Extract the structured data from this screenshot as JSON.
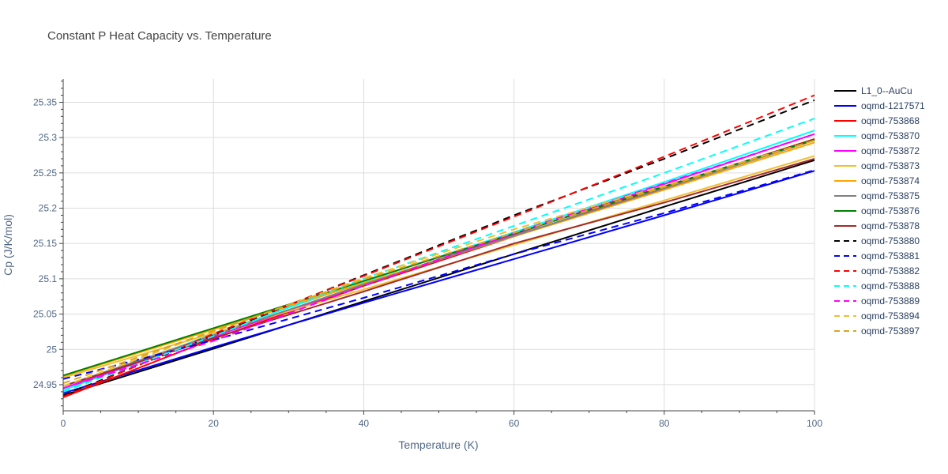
{
  "chart_data": {
    "type": "line",
    "title": "Constant P Heat Capacity vs. Temperature",
    "xlabel": "Temperature (K)",
    "ylabel": "Cp (J/K/mol)",
    "xlim": [
      0,
      100
    ],
    "ylim": [
      24.913,
      25.383
    ],
    "x_ticks": [
      0,
      20,
      40,
      60,
      80,
      100
    ],
    "y_ticks": [
      24.95,
      25,
      25.05,
      25.1,
      25.15,
      25.2,
      25.25,
      25.3,
      25.35
    ],
    "x_tick_labels": [
      "0",
      "20",
      "40",
      "60",
      "80",
      "100"
    ],
    "y_tick_labels": [
      "24.95",
      "25",
      "25.05",
      "25.1",
      "25.15",
      "25.2",
      "25.25",
      "25.3",
      "25.35"
    ],
    "grid": true,
    "legend_position": "right",
    "series": [
      {
        "name": "L1_0--AuCu",
        "color": "#000000",
        "dash": "solid",
        "x": [
          0,
          20,
          40,
          60,
          80,
          100
        ],
        "y": [
          24.935,
          25.001,
          25.068,
          25.135,
          25.202,
          25.268
        ]
      },
      {
        "name": "oqmd-1217571",
        "color": "#0000ff",
        "dash": "solid",
        "x": [
          0,
          20,
          40,
          60,
          80,
          100
        ],
        "y": [
          24.938,
          25.003,
          25.066,
          25.128,
          25.19,
          25.253
        ]
      },
      {
        "name": "oqmd-753868",
        "color": "#ff0000",
        "dash": "solid",
        "x": [
          0,
          20,
          40,
          60,
          80,
          100
        ],
        "y": [
          24.932,
          25.015,
          25.09,
          25.16,
          25.23,
          25.298
        ]
      },
      {
        "name": "oqmd-753870",
        "color": "#00ffff",
        "dash": "solid",
        "x": [
          0,
          20,
          40,
          60,
          80,
          100
        ],
        "y": [
          24.942,
          25.022,
          25.096,
          25.166,
          25.237,
          25.31
        ]
      },
      {
        "name": "oqmd-753872",
        "color": "#ff00ff",
        "dash": "solid",
        "x": [
          0,
          20,
          40,
          60,
          80,
          100
        ],
        "y": [
          24.945,
          25.018,
          25.092,
          25.163,
          25.234,
          25.305
        ]
      },
      {
        "name": "oqmd-753873",
        "color": "#f0c030",
        "dash": "solid",
        "x": [
          0,
          20,
          40,
          60,
          80,
          100
        ],
        "y": [
          24.96,
          25.023,
          25.085,
          25.148,
          25.211,
          25.274
        ]
      },
      {
        "name": "oqmd-753874",
        "color": "#ffa500",
        "dash": "solid",
        "x": [
          0,
          20,
          40,
          60,
          80,
          100
        ],
        "y": [
          24.962,
          25.028,
          25.094,
          25.16,
          25.226,
          25.293
        ]
      },
      {
        "name": "oqmd-753875",
        "color": "#808080",
        "dash": "solid",
        "x": [
          0,
          20,
          40,
          60,
          80,
          100
        ],
        "y": [
          24.948,
          25.02,
          25.092,
          25.161,
          25.228,
          25.296
        ]
      },
      {
        "name": "oqmd-753876",
        "color": "#008000",
        "dash": "solid",
        "x": [
          0,
          20,
          40,
          60,
          80,
          100
        ],
        "y": [
          24.963,
          25.03,
          25.097,
          25.164,
          25.231,
          25.297
        ]
      },
      {
        "name": "oqmd-753878",
        "color": "#a52a2a",
        "dash": "solid",
        "x": [
          0,
          20,
          40,
          60,
          80,
          100
        ],
        "y": [
          24.948,
          25.016,
          25.082,
          25.15,
          25.208,
          25.27
        ]
      },
      {
        "name": "oqmd-753880",
        "color": "#000000",
        "dash": "dash",
        "x": [
          0,
          20,
          40,
          60,
          80,
          100
        ],
        "y": [
          24.935,
          25.02,
          25.105,
          25.19,
          25.27,
          25.353
        ]
      },
      {
        "name": "oqmd-753881",
        "color": "#0000ff",
        "dash": "dash",
        "x": [
          0,
          20,
          40,
          60,
          80,
          100
        ],
        "y": [
          24.958,
          25.013,
          25.073,
          25.135,
          25.193,
          25.254
        ]
      },
      {
        "name": "oqmd-753882",
        "color": "#ff0000",
        "dash": "dash",
        "x": [
          0,
          20,
          40,
          60,
          80,
          100
        ],
        "y": [
          24.933,
          25.022,
          25.104,
          25.188,
          25.273,
          25.36
        ]
      },
      {
        "name": "oqmd-753888",
        "color": "#00ffff",
        "dash": "dash",
        "x": [
          0,
          20,
          40,
          60,
          80,
          100
        ],
        "y": [
          24.94,
          25.019,
          25.1,
          25.175,
          25.25,
          25.327
        ]
      },
      {
        "name": "oqmd-753889",
        "color": "#ff00ff",
        "dash": "dash",
        "x": [
          0,
          20,
          40,
          60,
          80,
          100
        ],
        "y": [
          24.945,
          25.012,
          25.09,
          25.165,
          25.235,
          25.305
        ]
      },
      {
        "name": "oqmd-753894",
        "color": "#f0c030",
        "dash": "dash",
        "x": [
          0,
          20,
          40,
          60,
          80,
          100
        ],
        "y": [
          24.948,
          25.025,
          25.101,
          25.17,
          25.232,
          25.296
        ]
      },
      {
        "name": "oqmd-753897",
        "color": "#daa520",
        "dash": "dash",
        "x": [
          0,
          20,
          40,
          60,
          80,
          100
        ],
        "y": [
          24.952,
          25.026,
          25.099,
          25.165,
          25.23,
          25.296
        ]
      }
    ]
  }
}
